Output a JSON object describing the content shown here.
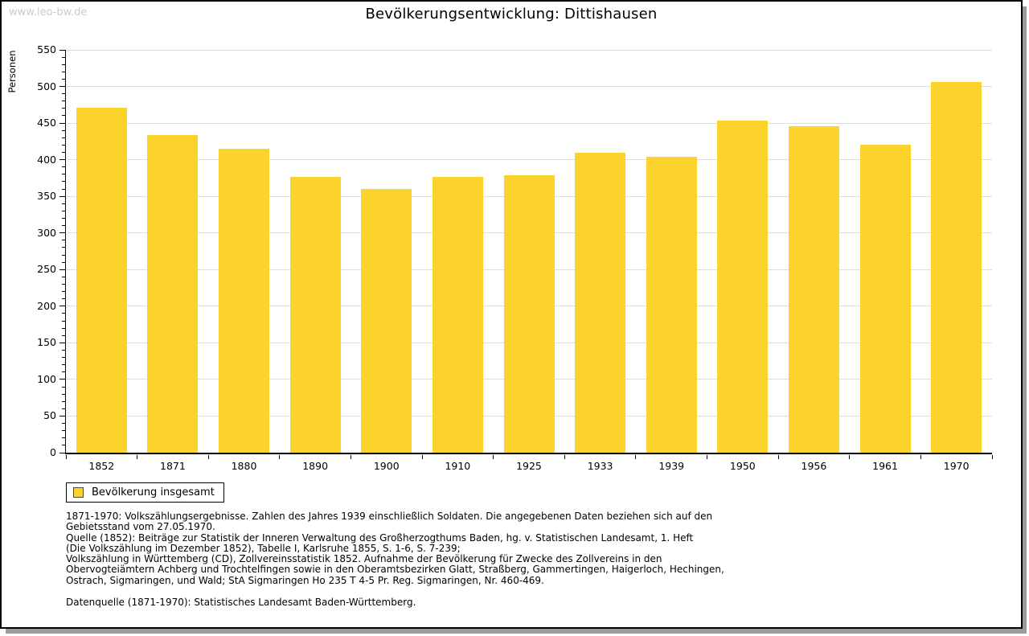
{
  "watermark": "www.leo-bw.de",
  "title": "Bevölkerungsentwicklung: Dittishausen",
  "chart_data": {
    "type": "bar",
    "title": "Bevölkerungsentwicklung: Dittishausen",
    "xlabel": "",
    "ylabel": "Personen",
    "categories": [
      "1852",
      "1871",
      "1880",
      "1890",
      "1900",
      "1910",
      "1925",
      "1933",
      "1939",
      "1950",
      "1956",
      "1961",
      "1970"
    ],
    "values": [
      471,
      434,
      415,
      377,
      360,
      377,
      379,
      410,
      404,
      453,
      446,
      421,
      506
    ],
    "series_name": "Bevölkerung insgesamt",
    "ylim": [
      0,
      550
    ],
    "ytick_step": 50,
    "minor_tick_step": 10,
    "grid": true,
    "legend_position": "bottom-left",
    "bar_color": "#FCD32D",
    "gridline_color": "#DEDEDE"
  },
  "legend": {
    "label": "Bevölkerung insgesamt"
  },
  "footer": {
    "lines": [
      "1871-1970: Volkszählungsergebnisse. Zahlen des Jahres 1939 einschließlich Soldaten. Die angegebenen Daten beziehen sich auf den",
      "Gebietsstand vom 27.05.1970.",
      "Quelle (1852): Beiträge zur Statistik der Inneren Verwaltung des Großherzogthums Baden, hg. v. Statistischen Landesamt, 1. Heft",
      "(Die Volkszählung im Dezember 1852), Tabelle I, Karlsruhe 1855, S. 1-6, S. 7-239;",
      "Volkszählung in Württemberg (CD), Zollvereinsstatistik 1852. Aufnahme der Bevölkerung für Zwecke des Zollvereins in den",
      "Obervogteiämtern Achberg und Trochtelfingen sowie in den Oberamtsbezirken Glatt, Straßberg, Gammertingen, Haigerloch, Hechingen,",
      "Ostrach, Sigmaringen, und Wald; StA Sigmaringen Ho 235 T 4-5 Pr. Reg. Sigmaringen, Nr. 460-469."
    ],
    "datasource": "Datenquelle (1871-1970): Statistisches Landesamt Baden-Württemberg."
  }
}
